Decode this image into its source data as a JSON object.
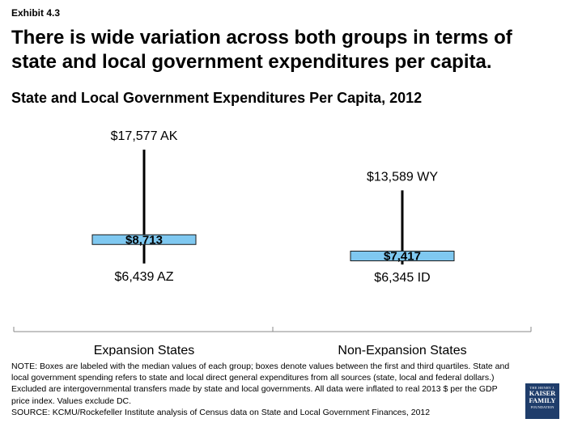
{
  "exhibit_label": "Exhibit 4.3",
  "headline": "There is wide variation across both groups in terms of state and local government expenditures per capita.",
  "notes": {
    "note": "NOTE: Boxes are labeled with the median values of each group; boxes denote values between the first and third quartiles. State and local government spending refers to state and local direct general expenditures from all sources (state, local and federal dollars.) Excluded are intergovernmental transfers made by state and local governments. All data were inflated to real 2013 $ per the GDP price index. Values exclude DC.",
    "source": "SOURCE: KCMU/Rockefeller Institute analysis of Census data on State and Local Government Finances, 2012"
  },
  "logo": {
    "line1": "THE HENRY J.",
    "line2": "KAISER",
    "line3": "FAMILY",
    "line4": "FOUNDATION"
  },
  "colors": {
    "box_fill": "#7fc8f0",
    "box_stroke": "#1a1a1a",
    "whisker": "#000000",
    "axis": "#888888"
  },
  "chart_data": {
    "type": "box",
    "title": "State and Local Government Expenditures Per Capita, 2012",
    "categories": [
      "Expansion States",
      "Non-Expansion States"
    ],
    "groups": [
      {
        "category": "Expansion States",
        "max": 17577,
        "max_label": "$17,577 AK",
        "q3": 9250,
        "median": 8713,
        "median_label": "$8,713",
        "q1": 8350,
        "min": 6439,
        "min_label": "$6,439 AZ"
      },
      {
        "category": "Non-Expansion States",
        "max": 13589,
        "max_label": "$13,589 WY",
        "q3": 7650,
        "median": 7417,
        "median_label": "$7,417",
        "q1": 7000,
        "min": 6345,
        "min_label": "$6,345 ID"
      }
    ],
    "y_range": [
      5500,
      18500
    ],
    "grid": false,
    "legend": "none"
  }
}
